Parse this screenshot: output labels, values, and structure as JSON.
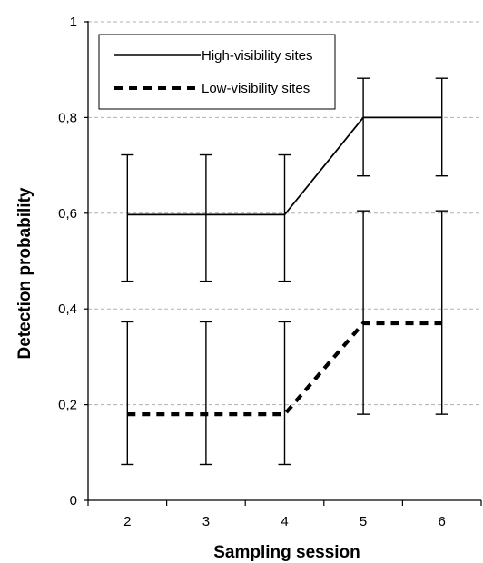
{
  "chart_data": {
    "type": "line",
    "title": "",
    "xlabel": "Sampling session",
    "ylabel": "Detection probability",
    "x": [
      2,
      3,
      4,
      5,
      6
    ],
    "xlim": [
      1.5,
      6.5
    ],
    "ylim": [
      0,
      1
    ],
    "x_tick_labels": [
      "2",
      "3",
      "4",
      "5",
      "6"
    ],
    "y_ticks": [
      0,
      0.2,
      0.4,
      0.6,
      0.8,
      1
    ],
    "y_tick_labels": [
      "0",
      "0,2",
      "0,4",
      "0,6",
      "0,8",
      "1"
    ],
    "grid": true,
    "legend_position": "top-left",
    "series": [
      {
        "name": "High-visibility sites",
        "style": "solid",
        "values": [
          0.597,
          0.597,
          0.597,
          0.8,
          0.8
        ],
        "error_lower": [
          0.458,
          0.458,
          0.458,
          0.678,
          0.678
        ],
        "error_upper": [
          0.722,
          0.722,
          0.722,
          0.882,
          0.882
        ]
      },
      {
        "name": "Low-visibility sites",
        "style": "dashed",
        "values": [
          0.18,
          0.18,
          0.18,
          0.37,
          0.37
        ],
        "error_lower": [
          0.075,
          0.075,
          0.075,
          0.18,
          0.18
        ],
        "error_upper": [
          0.373,
          0.373,
          0.373,
          0.605,
          0.605
        ]
      }
    ],
    "colors": {
      "line": "#000000",
      "grid": "#b0b0b0"
    }
  }
}
